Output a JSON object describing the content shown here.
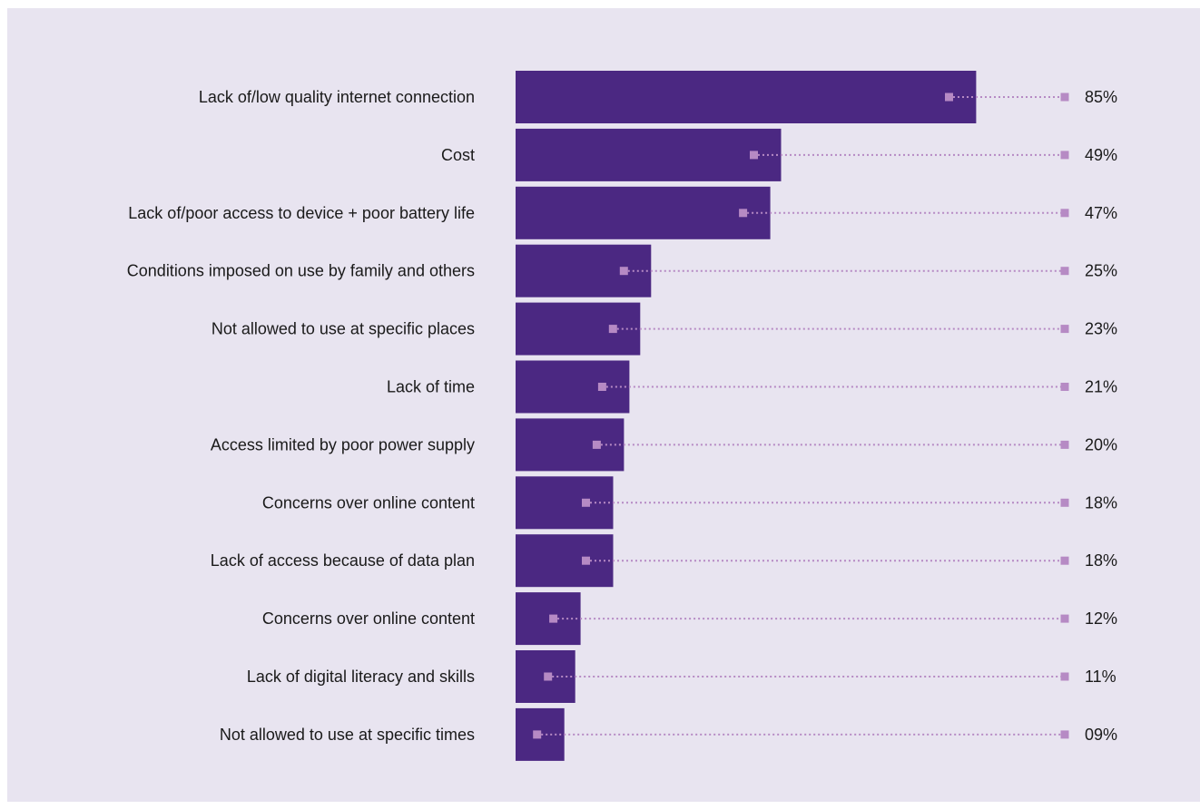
{
  "colors": {
    "panel_background": "#e8e4f0",
    "bar": "#4b2882",
    "marker": "#b68ac4",
    "leader_line": "#b68ac4",
    "text": "#1a1a1a"
  },
  "chart_data": {
    "type": "bar",
    "orientation": "horizontal",
    "categories": [
      "Lack of/low quality internet connection",
      "Cost",
      "Lack of/poor access to device + poor battery life",
      "Conditions imposed on use by family and others",
      "Not allowed to use at specific places",
      "Lack of time",
      "Access limited by poor power supply",
      "Concerns over online content",
      "Lack of access because of data plan",
      "Concerns over online content",
      "Lack of digital literacy and skills",
      "Not allowed to use at specific times"
    ],
    "values": [
      85,
      49,
      47,
      25,
      23,
      21,
      20,
      18,
      18,
      12,
      11,
      9
    ],
    "value_labels": [
      "85%",
      "49%",
      "47%",
      "25%",
      "23%",
      "21%",
      "20%",
      "18%",
      "18%",
      "12%",
      "11%",
      "09%"
    ],
    "unit": "%",
    "xlim": [
      0,
      100
    ],
    "grid": false,
    "legend": "none",
    "title": "",
    "xlabel": "",
    "ylabel": ""
  }
}
